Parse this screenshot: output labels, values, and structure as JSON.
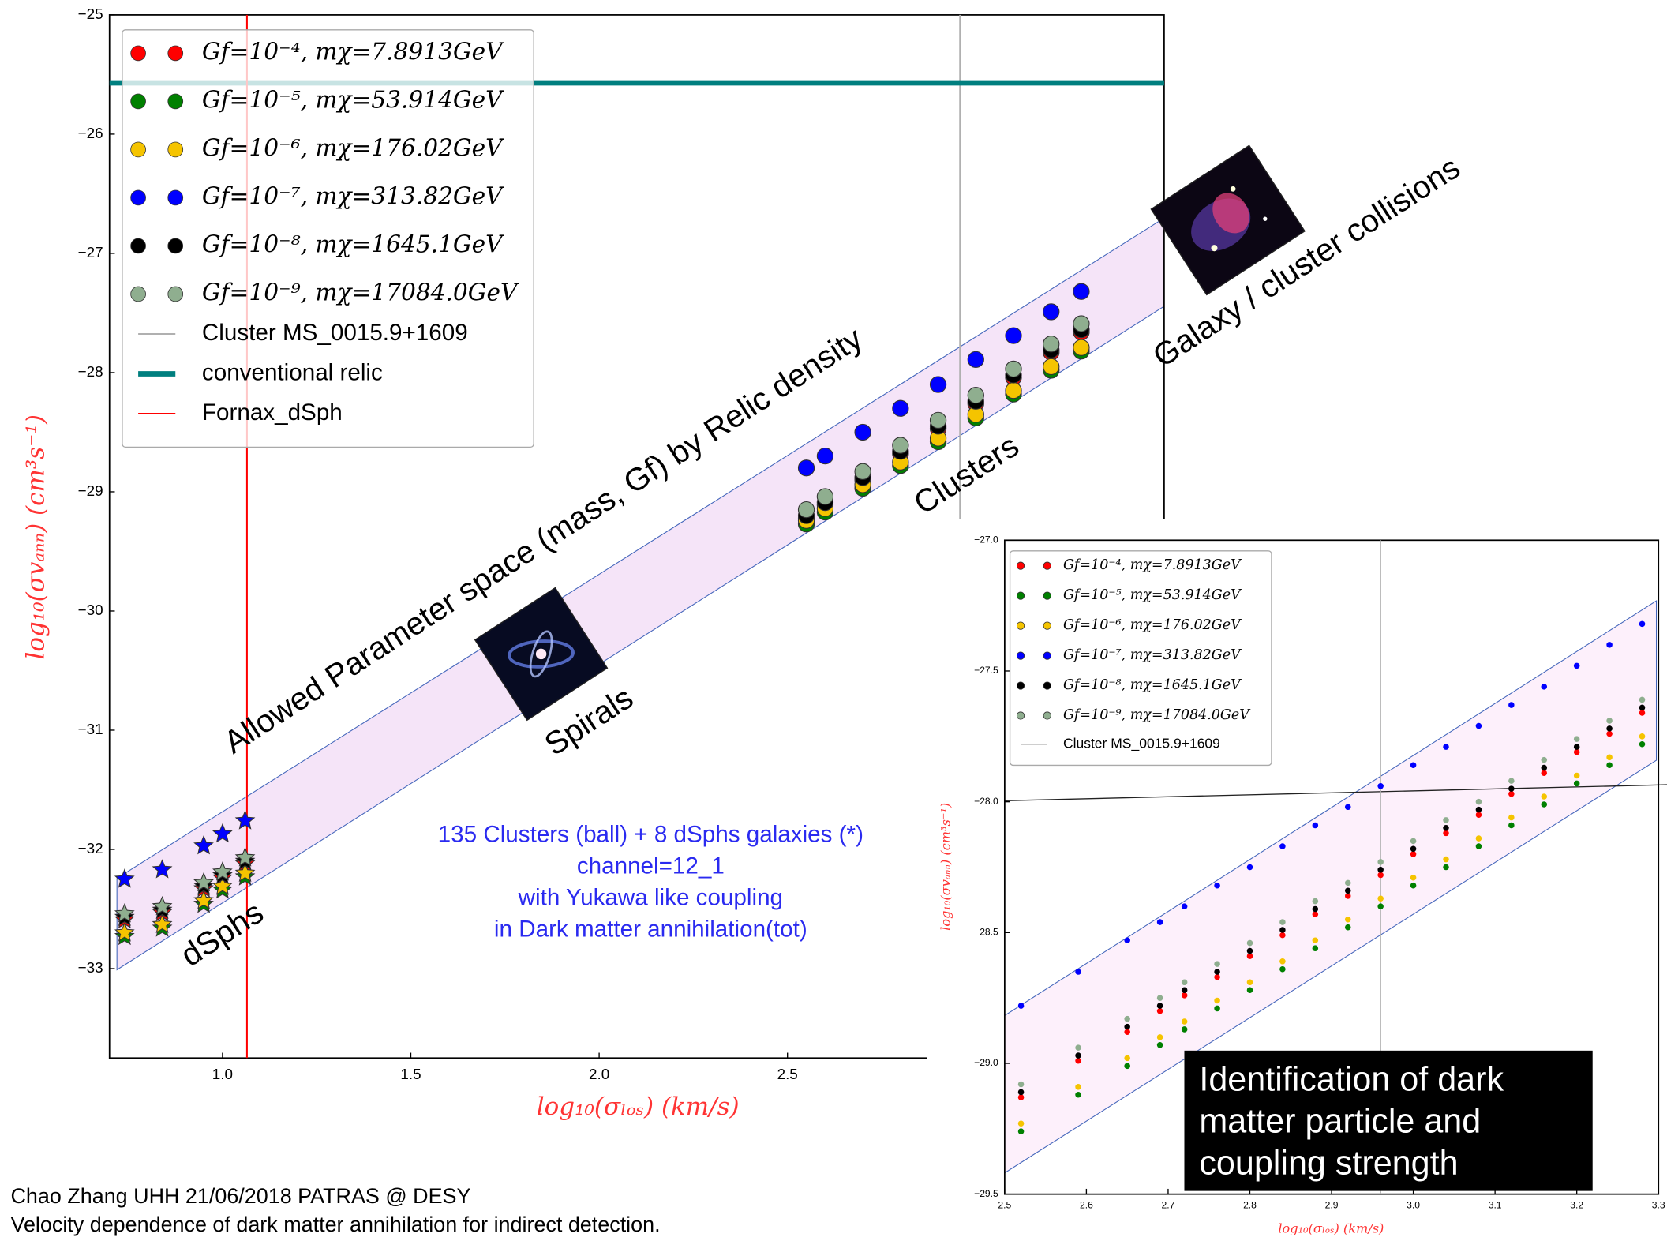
{
  "chart_data": [
    {
      "type": "scatter",
      "xlabel": "log₁₀(σₗₒₛ)  (km/s)",
      "ylabel": "log₁₀(σvₐₙₙ)  (cm³s⁻¹)",
      "xlim": [
        0.7,
        3.5
      ],
      "ylim": [
        -33.75,
        -25
      ],
      "xticks": [
        {
          "value": 1,
          "label": "1.0"
        },
        1.5,
        {
          "value": 2,
          "label": "2.0"
        },
        2.5
      ],
      "yticks": [
        {
          "value": -25,
          "label": "−25"
        },
        {
          "value": -26,
          "label": "−26"
        },
        {
          "value": -27,
          "label": "−27"
        },
        {
          "value": -28,
          "label": "−28"
        },
        {
          "value": -29,
          "label": "−29"
        },
        {
          "value": -30,
          "label": "−30"
        },
        {
          "value": -31,
          "label": "−31"
        },
        {
          "value": -32,
          "label": "−32"
        },
        {
          "value": -33,
          "label": "−33"
        }
      ],
      "legend": "upper left",
      "x": [
        0.74,
        0.84,
        0.95,
        1.0,
        1.06,
        2.55,
        2.6,
        2.7,
        2.8,
        2.9,
        3.0,
        3.1,
        3.2,
        3.28
      ],
      "series": [
        {
          "name": "Gf=10⁻⁴, mχ=7.8913GeV",
          "color": "#ff0000",
          "values": [
            -32.59,
            -32.53,
            -32.33,
            -32.24,
            -32.12,
            -29.22,
            -29.11,
            -28.9,
            -28.68,
            -28.47,
            -28.26,
            -28.04,
            -27.83,
            -27.66
          ]
        },
        {
          "name": "Gf=10⁻⁵, mχ=53.914GeV",
          "color": "#008000",
          "values": [
            -32.73,
            -32.66,
            -32.46,
            -32.34,
            -32.23,
            -29.27,
            -29.17,
            -28.97,
            -28.78,
            -28.58,
            -28.38,
            -28.18,
            -27.98,
            -27.82
          ]
        },
        {
          "name": "Gf=10⁻⁶, mχ=176.02GeV",
          "color": "#f5c400",
          "values": [
            -32.7,
            -32.63,
            -32.43,
            -32.31,
            -32.2,
            -29.24,
            -29.14,
            -28.94,
            -28.75,
            -28.55,
            -28.35,
            -28.15,
            -27.95,
            -27.79
          ]
        },
        {
          "name": "Gf=10⁻⁷, mχ=313.82GeV",
          "color": "#0000ff",
          "values": [
            -32.25,
            -32.17,
            -31.97,
            -31.87,
            -31.76,
            -28.8,
            -28.7,
            -28.5,
            -28.3,
            -28.1,
            -27.89,
            -27.69,
            -27.49,
            -27.32
          ]
        },
        {
          "name": "Gf=10⁻⁸, mχ=1645.1GeV",
          "color": "#000000",
          "values": [
            -32.57,
            -32.51,
            -32.31,
            -32.22,
            -32.1,
            -29.2,
            -29.09,
            -28.88,
            -28.66,
            -28.45,
            -28.24,
            -28.02,
            -27.81,
            -27.64
          ]
        },
        {
          "name": "Gf=10⁻⁹, mχ=17084.0GeV",
          "color": "#8fae8f",
          "values": [
            -32.54,
            -32.48,
            -32.28,
            -32.19,
            -32.07,
            -29.15,
            -29.04,
            -28.83,
            -28.61,
            -28.4,
            -28.19,
            -27.97,
            -27.76,
            -27.59
          ]
        }
      ],
      "lines": [
        {
          "name": "Cluster MS_0015.9+1609",
          "color": "#b0b0b0",
          "orientation": "vertical",
          "value": 2.958,
          "linewidth": 1.5
        },
        {
          "name": "conventional relic",
          "color": "#007f7f",
          "orientation": "horizontal",
          "value": -25.57,
          "linewidth": 5
        },
        {
          "name": "Fornax_dSph",
          "color": "#ff0000",
          "orientation": "vertical",
          "value": 1.065,
          "linewidth": 1.5
        }
      ],
      "annotations": [
        "Allowed Parameter space (mass, Gf) by Relic density",
        "Spirals",
        "Clusters",
        "dSphs",
        "Galaxy / cluster collisions"
      ],
      "note": [
        "135 Clusters (ball) + 8 dSphs galaxies (*)",
        "channel=12_1",
        "with Yukawa like coupling",
        "in Dark matter annihilation(tot)"
      ]
    },
    {
      "type": "scatter",
      "xlabel": "log₁₀(σₗₒₛ)  (km/s)",
      "ylabel": "log₁₀(σvₐₙₙ)  (cm³s⁻¹)",
      "xlim": [
        2.5,
        3.3
      ],
      "ylim": [
        -29.5,
        -27.0
      ],
      "xticks": [
        2.5,
        2.6,
        2.7,
        2.8,
        2.9,
        {
          "value": 3,
          "label": "3.0"
        },
        3.1,
        3.2,
        3.3
      ],
      "yticks": [
        {
          "value": -27,
          "label": "−27.0"
        },
        {
          "value": -27.5,
          "label": "−27.5"
        },
        {
          "value": -28,
          "label": "−28.0"
        },
        {
          "value": -28.5,
          "label": "−28.5"
        },
        {
          "value": -29,
          "label": "−29.0"
        },
        {
          "value": -29.5,
          "label": "−29.5"
        }
      ],
      "legend": "upper left",
      "x": [
        2.52,
        2.59,
        2.65,
        2.69,
        2.72,
        2.76,
        2.8,
        2.84,
        2.88,
        2.92,
        2.96,
        3.0,
        3.04,
        3.08,
        3.12,
        3.16,
        3.2,
        3.24,
        3.28
      ],
      "series": [
        {
          "name": "Gf=10⁻⁴, mχ=7.8913GeV",
          "color": "#ff0000",
          "values": [
            -29.13,
            -28.99,
            -28.88,
            -28.8,
            -28.74,
            -28.67,
            -28.59,
            -28.51,
            -28.43,
            -28.36,
            -28.28,
            -28.2,
            -28.12,
            -28.05,
            -27.97,
            -27.89,
            -27.81,
            -27.74,
            -27.66
          ]
        },
        {
          "name": "Gf=10⁻⁵, mχ=53.914GeV",
          "color": "#008000",
          "values": [
            -29.26,
            -29.12,
            -29.01,
            -28.93,
            -28.87,
            -28.79,
            -28.72,
            -28.64,
            -28.56,
            -28.48,
            -28.4,
            -28.32,
            -28.25,
            -28.17,
            -28.09,
            -28.01,
            -27.93,
            -27.86,
            -27.78
          ]
        },
        {
          "name": "Gf=10⁻⁶, mχ=176.02GeV",
          "color": "#f5c400",
          "values": [
            -29.23,
            -29.09,
            -28.98,
            -28.9,
            -28.84,
            -28.76,
            -28.69,
            -28.61,
            -28.53,
            -28.45,
            -28.37,
            -28.29,
            -28.22,
            -28.14,
            -28.06,
            -27.98,
            -27.9,
            -27.83,
            -27.75
          ]
        },
        {
          "name": "Gf=10⁻⁷, mχ=313.82GeV",
          "color": "#0000ff",
          "values": [
            -28.78,
            -28.65,
            -28.53,
            -28.46,
            -28.4,
            -28.32,
            -28.25,
            -28.17,
            -28.09,
            -28.02,
            -27.94,
            -27.86,
            -27.79,
            -27.71,
            -27.63,
            -27.56,
            -27.48,
            -27.4,
            -27.32
          ]
        },
        {
          "name": "Gf=10⁻⁸, mχ=1645.1GeV",
          "color": "#000000",
          "values": [
            -29.11,
            -28.97,
            -28.86,
            -28.78,
            -28.72,
            -28.65,
            -28.57,
            -28.49,
            -28.41,
            -28.34,
            -28.26,
            -28.18,
            -28.1,
            -28.03,
            -27.95,
            -27.87,
            -27.79,
            -27.72,
            -27.64
          ]
        },
        {
          "name": "Gf=10⁻⁹, mχ=17084.0GeV",
          "color": "#8fae8f",
          "values": [
            -29.08,
            -28.94,
            -28.83,
            -28.75,
            -28.69,
            -28.62,
            -28.54,
            -28.46,
            -28.38,
            -28.31,
            -28.23,
            -28.15,
            -28.07,
            -28.0,
            -27.92,
            -27.84,
            -27.76,
            -27.69,
            -27.61
          ]
        }
      ],
      "lines": [
        {
          "name": "Cluster MS_0015.9+1609",
          "color": "#b0b0b0",
          "orientation": "vertical",
          "value": 2.96,
          "linewidth": 1
        }
      ],
      "annotation": [
        "Identification of dark",
        "matter particle and",
        "coupling strength"
      ]
    }
  ],
  "footer": [
    "Chao Zhang  UHH  21/06/2018 PATRAS @ DESY",
    "Velocity dependence of dark matter  annihilation for indirect detection."
  ]
}
